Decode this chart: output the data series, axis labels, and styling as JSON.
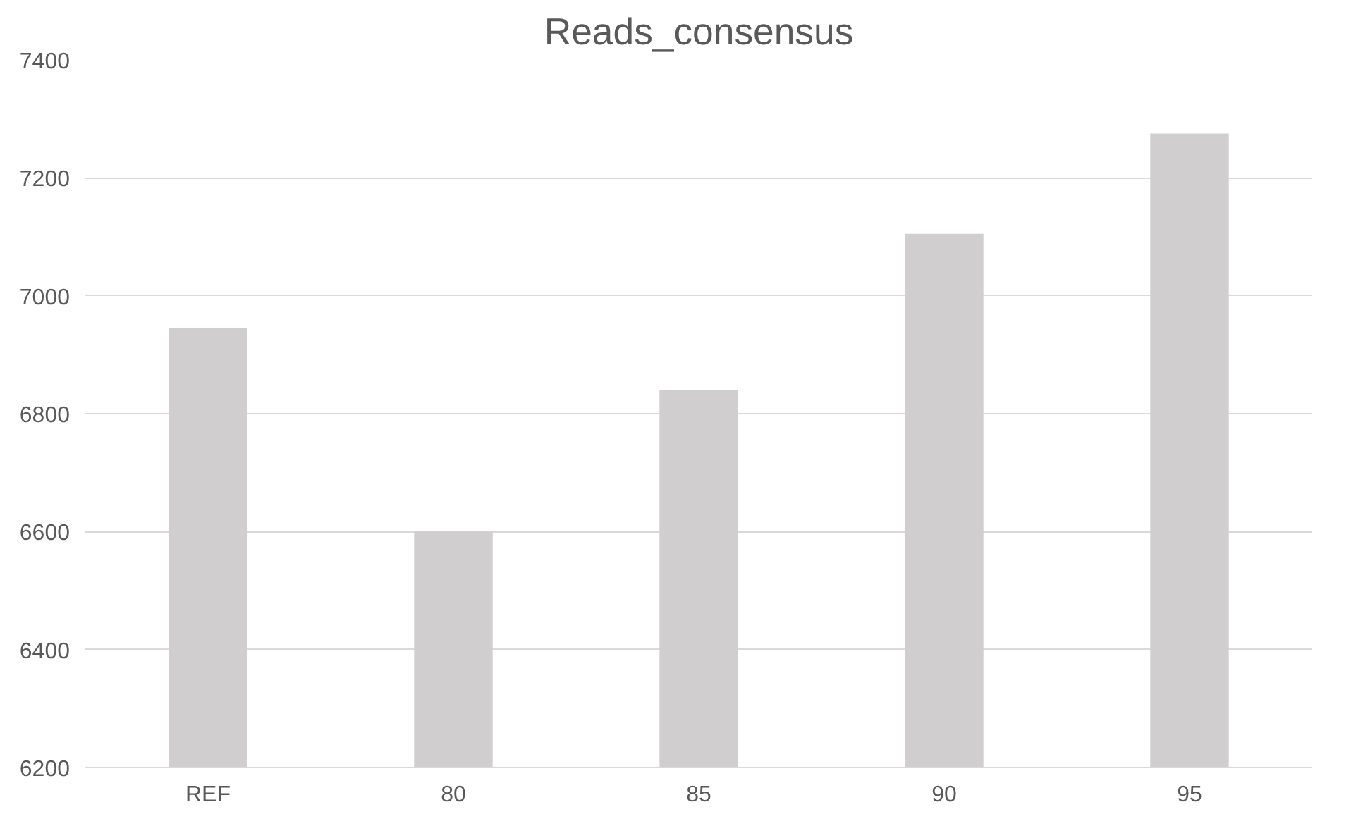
{
  "chart_data": {
    "type": "bar",
    "title": "Reads_consensus",
    "categories": [
      "REF",
      "80",
      "85",
      "90",
      "95"
    ],
    "values": [
      6945,
      6600,
      6840,
      7105,
      7275
    ],
    "color": "#d0cece",
    "ylim": [
      6200,
      7400
    ],
    "yticks": [
      6200,
      6400,
      6600,
      6800,
      7000,
      7200,
      7400
    ],
    "grid": "y"
  }
}
